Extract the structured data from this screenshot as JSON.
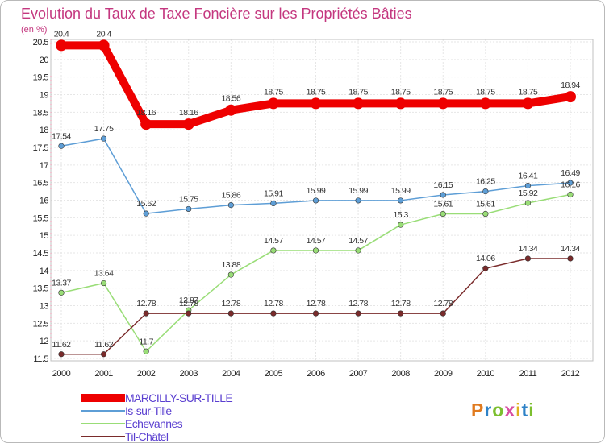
{
  "chart_data": {
    "type": "line",
    "title": "Evolution du Taux de Taxe Foncière sur les Propriétés Bâties",
    "ylabel": "(en %)",
    "xlabel": "",
    "x": [
      "2000",
      "2001",
      "2002",
      "2003",
      "2004",
      "2005",
      "2006",
      "2007",
      "2008",
      "2009",
      "2010",
      "2011",
      "2012"
    ],
    "ylim": [
      11.5,
      20.5
    ],
    "yticks": [
      "11.5",
      "12",
      "12.5",
      "13",
      "13.5",
      "14",
      "14.5",
      "15",
      "15.5",
      "16",
      "16.5",
      "17",
      "17.5",
      "18",
      "18.5",
      "19",
      "19.5",
      "20",
      "20.5"
    ],
    "grid": true,
    "legend_position": "bottom-left",
    "series": [
      {
        "name": "MARCILLY-SUR-TILLE",
        "color": "#ee0000",
        "values": [
          20.4,
          20.4,
          18.16,
          18.16,
          18.56,
          18.75,
          18.75,
          18.75,
          18.75,
          18.75,
          18.75,
          18.75,
          18.94
        ],
        "labels": [
          "20.4",
          "20.4",
          "18.16",
          "18.16",
          "18.56",
          "18.75",
          "18.75",
          "18.75",
          "18.75",
          "18.75",
          "18.75",
          "18.75",
          "18.94"
        ]
      },
      {
        "name": "Is-sur-Tille",
        "color": "#5e9ed6",
        "values": [
          17.54,
          17.75,
          15.62,
          15.75,
          15.86,
          15.91,
          15.99,
          15.99,
          15.99,
          16.15,
          16.25,
          16.41,
          16.49
        ],
        "labels": [
          "17.54",
          "17.75",
          "15.62",
          "15.75",
          "15.86",
          "15.91",
          "15.99",
          "15.99",
          "15.99",
          "16.15",
          "16.25",
          "16.41",
          "16.49"
        ]
      },
      {
        "name": "Echevannes",
        "color": "#99dd77",
        "values": [
          13.37,
          13.64,
          11.7,
          12.87,
          13.88,
          14.57,
          14.57,
          14.57,
          15.3,
          15.61,
          15.61,
          15.92,
          16.16
        ],
        "labels": [
          "13.37",
          "13.64",
          "11.7",
          "12.87",
          "13.88",
          "14.57",
          "14.57",
          "14.57",
          "15.3",
          "15.61",
          "15.61",
          "15.92",
          "16.16"
        ]
      },
      {
        "name": "Til-Châtel",
        "color": "#7a2b2b",
        "values": [
          11.62,
          11.62,
          12.78,
          12.78,
          12.78,
          12.78,
          12.78,
          12.78,
          12.78,
          12.78,
          14.06,
          14.34,
          14.34
        ],
        "labels": [
          "11.62",
          "11.62",
          "12.78",
          "12.78",
          "12.78",
          "12.78",
          "12.78",
          "12.78",
          "12.78",
          "12.78",
          "14.06",
          "14.34",
          "14.34"
        ]
      }
    ]
  },
  "logo": {
    "text": "Proxiti",
    "letter_colors": [
      "#e07a1e",
      "#2e82c7",
      "#7cbf2f",
      "#d84ea2",
      "#e0b01e",
      "#2e82c7",
      "#7cbf2f"
    ]
  }
}
